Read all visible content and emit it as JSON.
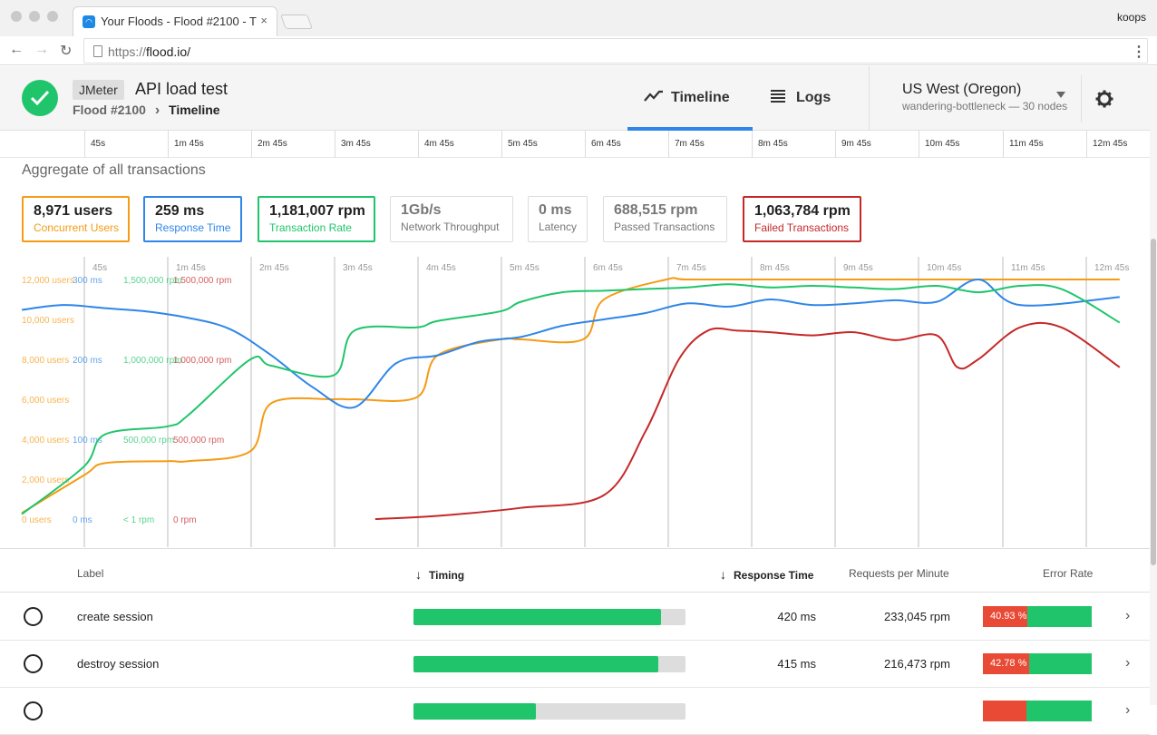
{
  "browser": {
    "tab_title": "Your Floods - Flood #2100 - T",
    "tab_close": "×",
    "profile": "koops",
    "url_scheme": "https://",
    "url_host": "flood.io/",
    "back": "←",
    "forward": "→",
    "reload": "↻",
    "menu": "⋮"
  },
  "header": {
    "status": "passed",
    "tool": "JMeter",
    "test_name": "API load test",
    "breadcrumb_flood": "Flood #2100",
    "breadcrumb_sep": "›",
    "breadcrumb_current": "Timeline",
    "tabs": [
      {
        "label": "Timeline",
        "icon": "timeline-icon",
        "active": true
      },
      {
        "label": "Logs",
        "icon": "list-icon",
        "active": false
      }
    ],
    "region": "US West (Oregon)",
    "region_sub": "wandering-bottleneck — 30 nodes"
  },
  "time_axis": [
    "45s",
    "1m 45s",
    "2m 45s",
    "3m 45s",
    "4m 45s",
    "5m 45s",
    "6m 45s",
    "7m 45s",
    "8m 45s",
    "9m 45s",
    "10m 45s",
    "11m 45s",
    "12m 45s"
  ],
  "aggregate_title": "Aggregate of all transactions",
  "stats": [
    {
      "value": "8,971 users",
      "label": "Concurrent Users",
      "color": "#f59b14",
      "active": true
    },
    {
      "value": "259 ms",
      "label": "Response Time",
      "color": "#2f86e8",
      "active": true
    },
    {
      "value": "1,181,007 rpm",
      "label": "Transaction Rate",
      "color": "#20c56b",
      "active": true
    },
    {
      "value": "1Gb/s",
      "label": "Network Throughput",
      "color": "#777777",
      "active": false
    },
    {
      "value": "0 ms",
      "label": "Latency",
      "color": "#777777",
      "active": false
    },
    {
      "value": "688,515 rpm",
      "label": "Passed Transactions",
      "color": "#777777",
      "active": false
    },
    {
      "value": "1,063,784 rpm",
      "label": "Failed Transactions",
      "color": "#c62828",
      "active": true
    }
  ],
  "chart_data": {
    "type": "line",
    "x_ticks": [
      "45s",
      "1m 45s",
      "2m 45s",
      "3m 45s",
      "4m 45s",
      "5m 45s",
      "6m 45s",
      "7m 45s",
      "8m 45s",
      "9m 45s",
      "10m 45s",
      "11m 45s",
      "12m 45s"
    ],
    "y_axes": [
      {
        "name": "users",
        "color": "#f59b14",
        "ticks": [
          "0 users",
          "2,000 users",
          "4,000 users",
          "6,000 users",
          "8,000 users",
          "10,000 users",
          "12,000 users"
        ],
        "range": [
          0,
          12000
        ]
      },
      {
        "name": "ms",
        "color": "#2f86e8",
        "ticks": [
          "0 ms",
          "100 ms",
          "200 ms",
          "300 ms"
        ],
        "range": [
          0,
          300
        ]
      },
      {
        "name": "rpm",
        "color": "#20c56b",
        "ticks": [
          "< 1 rpm",
          "500,000 rpm",
          "1,000,000 rpm",
          "1,500,000 rpm"
        ],
        "range": [
          0,
          1500000
        ]
      },
      {
        "name": "failed rpm",
        "color": "#c62828",
        "ticks": [
          "0 rpm",
          "500,000 rpm",
          "1,000,000 rpm",
          "1,500,000 rpm"
        ],
        "range": [
          0,
          1500000
        ]
      }
    ],
    "x_range_min": [
      0,
      13.3
    ],
    "series": [
      {
        "name": "Concurrent Users",
        "color": "#f59b14",
        "axis": 0,
        "x": [
          0,
          0.75,
          1,
          1.75,
          2,
          2.75,
          3,
          3.75,
          4,
          4.75,
          5,
          5.75,
          6,
          6.75,
          7,
          7.75,
          8,
          9,
          10,
          11,
          12,
          13.2
        ],
        "y": [
          300,
          2200,
          2800,
          2900,
          2900,
          3400,
          5800,
          6000,
          6000,
          6100,
          8200,
          9000,
          9000,
          9000,
          11000,
          12000,
          12000,
          12000,
          12000,
          12000,
          12000,
          12000
        ]
      },
      {
        "name": "Response Time",
        "color": "#2f86e8",
        "axis": 1,
        "x": [
          0,
          0.5,
          1,
          1.5,
          2,
          2.5,
          3,
          3.5,
          4,
          4.5,
          5,
          5.5,
          6,
          6.5,
          7,
          7.5,
          8,
          8.5,
          9,
          9.5,
          10,
          10.5,
          11,
          11.5,
          12,
          13.2
        ],
        "y": [
          262,
          268,
          264,
          260,
          252,
          238,
          205,
          165,
          140,
          195,
          205,
          222,
          228,
          242,
          250,
          258,
          270,
          266,
          275,
          268,
          270,
          274,
          272,
          300,
          268,
          278
        ]
      },
      {
        "name": "Transaction Rate",
        "color": "#20c56b",
        "axis": 2,
        "x": [
          0,
          0.75,
          1,
          1.75,
          2,
          2.75,
          3,
          3.75,
          4,
          4.75,
          5,
          5.75,
          6,
          6.5,
          7,
          7.5,
          8,
          8.5,
          9,
          9.5,
          10,
          10.5,
          11,
          11.5,
          12,
          12.5,
          13.2
        ],
        "y": [
          30000,
          330000,
          530000,
          580000,
          650000,
          1000000,
          960000,
          900000,
          1180000,
          1200000,
          1240000,
          1300000,
          1360000,
          1420000,
          1430000,
          1440000,
          1450000,
          1470000,
          1450000,
          1460000,
          1450000,
          1440000,
          1460000,
          1420000,
          1460000,
          1440000,
          1230000
        ]
      },
      {
        "name": "Failed Transactions",
        "color": "#c62828",
        "axis": 3,
        "x": [
          4.25,
          5,
          6,
          7,
          7.5,
          7.9,
          8.25,
          8.6,
          9,
          9.5,
          10,
          10.5,
          11,
          11.25,
          11.5,
          12,
          12.5,
          13.2
        ],
        "y": [
          0,
          20000,
          70000,
          150000,
          550000,
          1000000,
          1180000,
          1180000,
          1170000,
          1150000,
          1170000,
          1120000,
          1150000,
          950000,
          1000000,
          1200000,
          1200000,
          950000
        ]
      }
    ]
  },
  "table": {
    "headers": {
      "label": "Label",
      "timing": "Timing",
      "response_time": "Response Time",
      "rpm": "Requests per Minute",
      "error_rate": "Error Rate",
      "sort_icon": "↓"
    },
    "rows": [
      {
        "label": "create session",
        "timing_fraction": 0.91,
        "response_time": "420 ms",
        "rpm": "233,045 rpm",
        "error_rate": "40.93 %",
        "error_fraction": 0.4093
      },
      {
        "label": "destroy session",
        "timing_fraction": 0.9,
        "response_time": "415 ms",
        "rpm": "216,473 rpm",
        "error_rate": "42.78 %",
        "error_fraction": 0.4278
      },
      {
        "label": "",
        "timing_fraction": 0.45,
        "response_time": "",
        "rpm": "",
        "error_rate": "",
        "error_fraction": 0.4
      }
    ],
    "chevron": "›"
  }
}
